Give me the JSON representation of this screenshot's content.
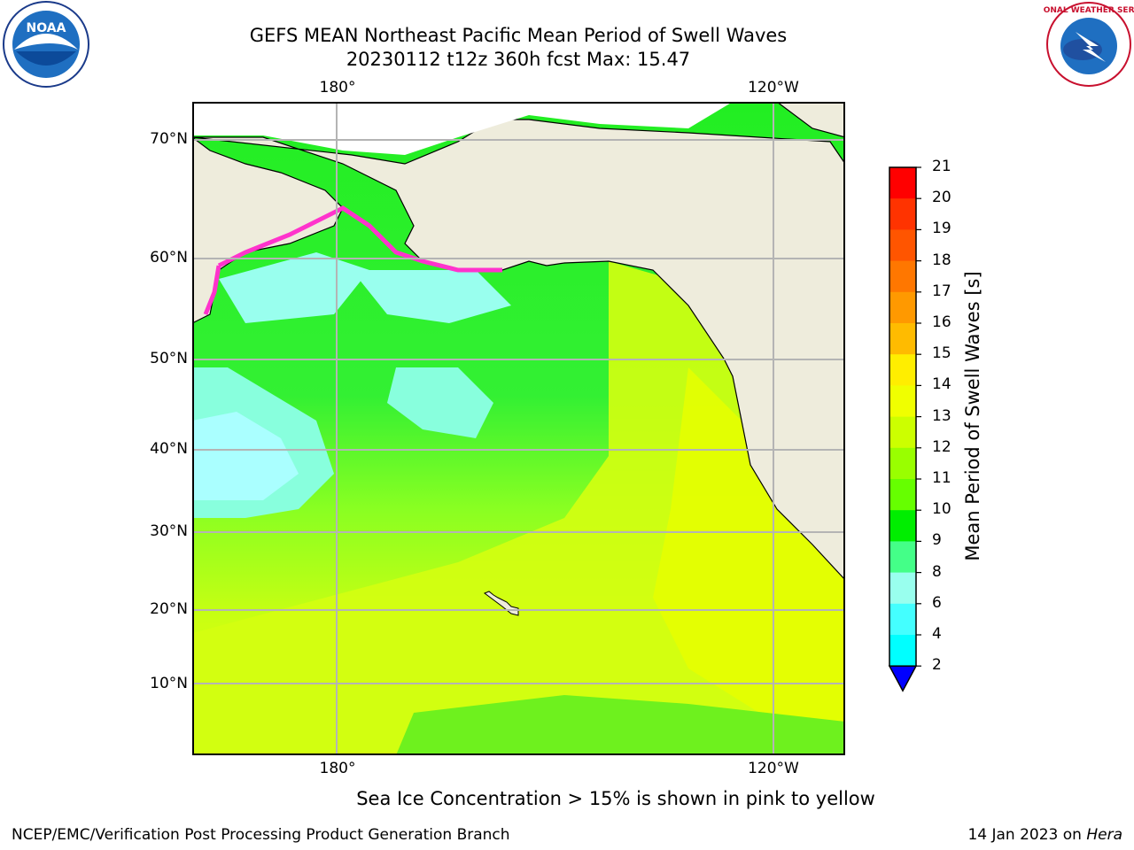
{
  "header": {
    "title_line1": "GEFS MEAN Northeast Pacific Mean Period of Swell Waves",
    "title_line2": "20230112 t12z 360h fcst   Max: 15.47"
  },
  "map": {
    "lon_labels": [
      "180°",
      "120°W"
    ],
    "lat_labels": [
      "70°N",
      "60°N",
      "50°N",
      "40°N",
      "30°N",
      "20°N",
      "10°N"
    ],
    "land_color": "#eeecdc",
    "grid_color": "#b4b4b4"
  },
  "colorbar": {
    "title": "Mean Period of Swell Waves [s]",
    "ticks": [
      "21",
      "20",
      "19",
      "18",
      "17",
      "16",
      "15",
      "14",
      "13",
      "12",
      "11",
      "10",
      "9",
      "8",
      "6",
      "4",
      "2"
    ],
    "colors": [
      "#ff0000",
      "#ff3300",
      "#ff5500",
      "#ff7700",
      "#ff9900",
      "#ffbb00",
      "#ffee00",
      "#f0ff00",
      "#ccff00",
      "#99ff00",
      "#66ff00",
      "#00ee00",
      "#44ff88",
      "#99ffee",
      "#44ffff",
      "#00ffff",
      "#00ddff",
      "#0077ff",
      "#0000ff"
    ]
  },
  "footer": {
    "note": "Sea Ice Concentration > 15% is shown in pink to yellow",
    "org": "NCEP/EMC/Verification Post Processing Product Generation Branch",
    "date": "14 Jan 2023 on ",
    "host": "Hera"
  },
  "logos": {
    "noaa_text": "NOAA",
    "nws_text": "NATIONAL WEATHER SERVICE"
  }
}
